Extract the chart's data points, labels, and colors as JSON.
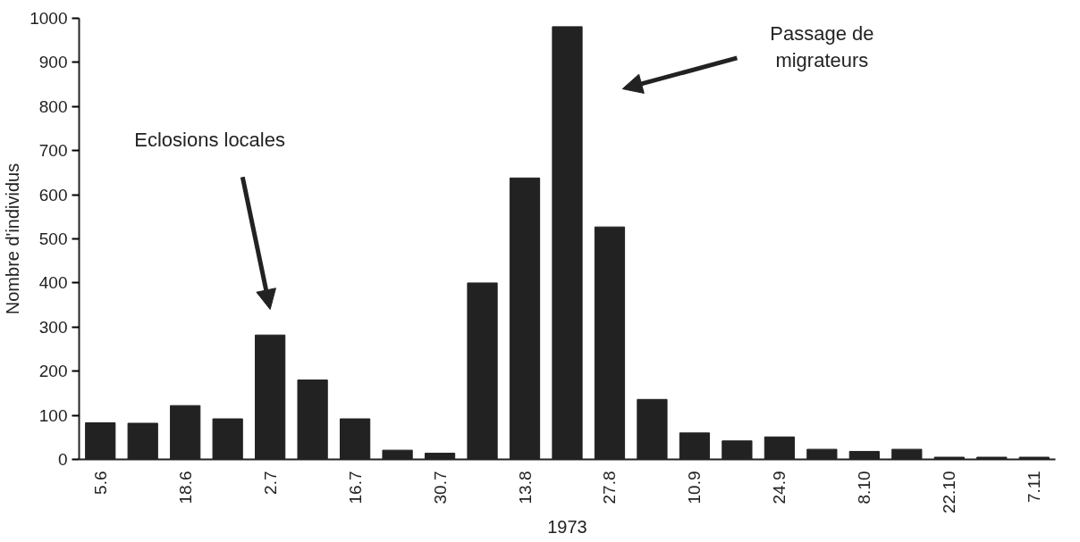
{
  "chart_data": {
    "type": "bar",
    "xlabel": "1973",
    "ylabel": "Nombre d'individus",
    "categories": [
      "5.6",
      null,
      "18.6",
      null,
      "2.7",
      null,
      "16.7",
      null,
      "30.7",
      null,
      "13.8",
      null,
      "27.8",
      null,
      "10.9",
      null,
      "24.9",
      null,
      "8.10",
      null,
      "22.10",
      null,
      "7.11"
    ],
    "values": [
      83,
      82,
      122,
      92,
      282,
      180,
      92,
      21,
      14,
      400,
      638,
      981,
      527,
      136,
      60,
      42,
      51,
      23,
      18,
      23,
      5,
      5,
      5
    ],
    "color": "#222222",
    "ylim": [
      0,
      1000
    ],
    "yticks": [
      0,
      100,
      200,
      300,
      400,
      500,
      600,
      700,
      800,
      900,
      1000
    ],
    "grid": false,
    "annotations": [
      "Eclosions locales",
      "Passage de migrateurs"
    ]
  }
}
